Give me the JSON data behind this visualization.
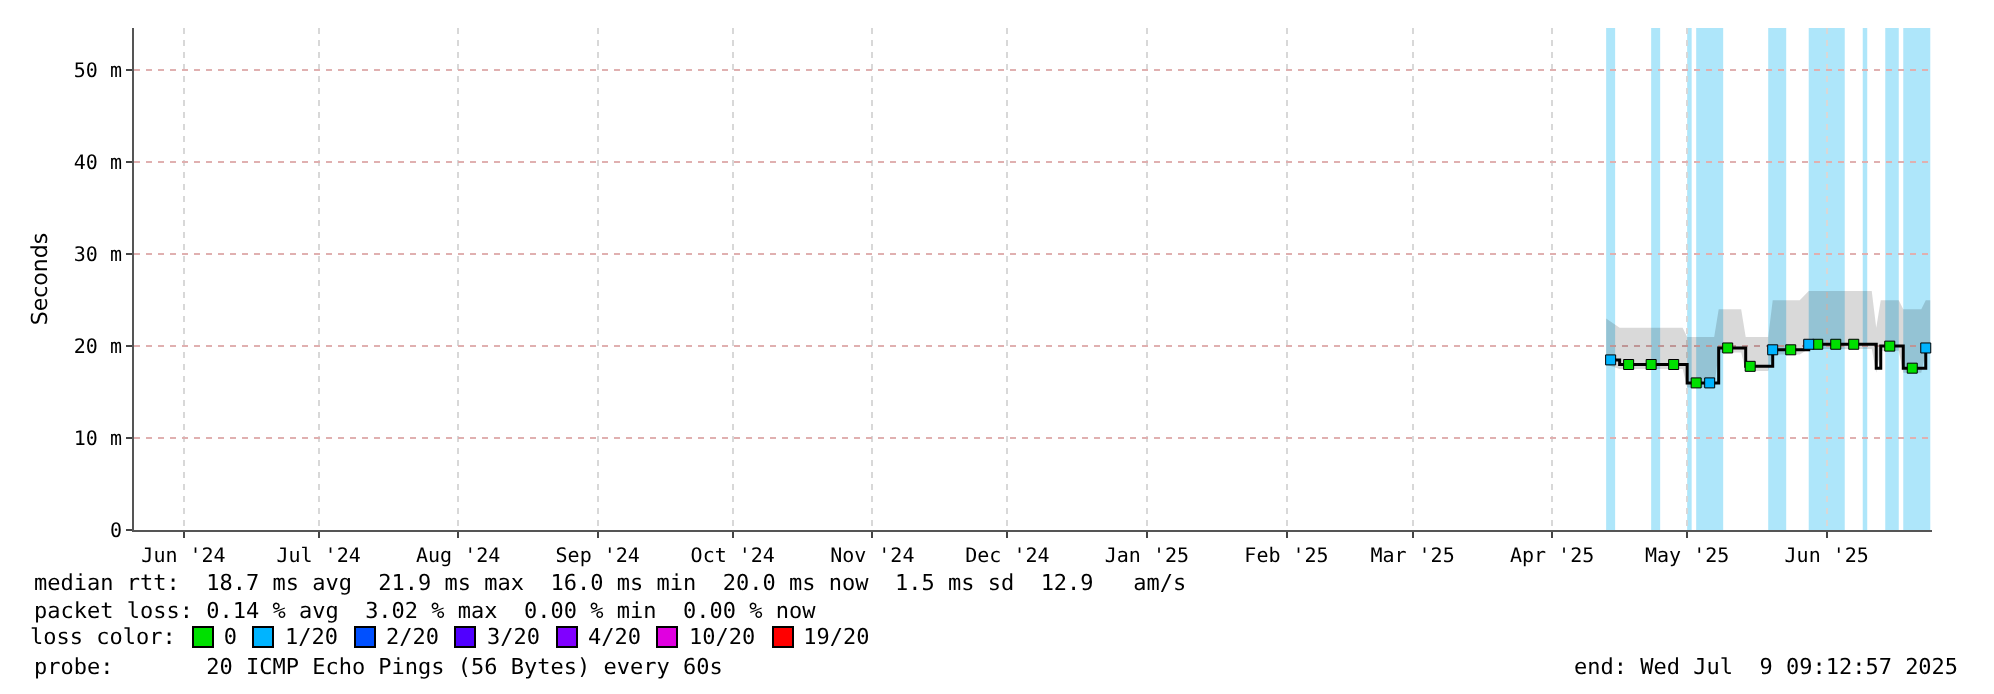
{
  "chart_data": {
    "type": "line",
    "ylabel": "Seconds",
    "xlim": [
      "2024-06-05",
      "2025-07-09T09:13"
    ],
    "xticks": [
      {
        "value": "2024-06-16",
        "label": "Jun '24"
      },
      {
        "value": "2024-07-16",
        "label": "Jul '24"
      },
      {
        "value": "2024-08-16",
        "label": "Aug '24"
      },
      {
        "value": "2024-09-16",
        "label": "Sep '24"
      },
      {
        "value": "2024-10-16",
        "label": "Oct '24"
      },
      {
        "value": "2024-11-16",
        "label": "Nov '24"
      },
      {
        "value": "2024-12-16",
        "label": "Dec '24"
      },
      {
        "value": "2025-01-16",
        "label": "Jan '25"
      },
      {
        "value": "2025-02-16",
        "label": "Feb '25"
      },
      {
        "value": "2025-03-16",
        "label": "Mar '25"
      },
      {
        "value": "2025-04-16",
        "label": "Apr '25"
      },
      {
        "value": "2025-05-16",
        "label": "May '25"
      },
      {
        "value": "2025-06-16",
        "label": "Jun '25"
      }
    ],
    "ylim": [
      0,
      54.6
    ],
    "yticks": [
      0,
      {
        "value": 10,
        "label": "10 m"
      },
      {
        "value": 20,
        "label": "20 m"
      },
      {
        "value": 30,
        "label": "30 m"
      },
      {
        "value": 40,
        "label": "40 m"
      },
      {
        "value": 50,
        "label": "50 m"
      }
    ],
    "grid": true,
    "legend": "bottom",
    "legend_title": "loss color:",
    "marker": "square",
    "series": [
      {
        "color": "#000000",
        "marker": "none",
        "x": [
          "2025-04-28",
          "2025-05-01",
          "2025-05-15",
          "2025-05-16",
          "2025-05-22",
          "2025-05-23",
          "2025-05-28",
          "2025-05-29",
          "2025-06-03",
          "2025-06-04",
          "2025-06-10",
          "2025-06-12",
          "2025-06-26",
          "2025-06-27",
          "2025-06-28",
          "2025-07-02",
          "2025-07-03",
          "2025-07-07",
          "2025-07-08",
          "2025-07-09"
        ],
        "values": [
          18.5,
          18,
          18,
          16,
          16,
          19.8,
          19.8,
          17.8,
          17.8,
          19.6,
          19.6,
          20.2,
          20.2,
          17.6,
          20,
          20,
          17.6,
          17.6,
          19.8,
          19.8
        ],
        "lower": [
          18,
          17.5,
          17.5,
          15.5,
          15.5,
          19.3,
          19.3,
          17.3,
          17.3,
          19.1,
          19.1,
          19.7,
          19.7,
          17.1,
          19.5,
          19.5,
          17.1,
          17.1,
          19.3,
          19.3
        ],
        "upper": [
          23,
          22,
          22,
          21,
          21,
          24,
          24,
          21,
          21,
          25,
          25,
          26,
          26,
          22,
          25,
          25,
          24,
          24,
          25,
          25
        ]
      },
      {
        "name": "0",
        "type": "scatter",
        "color": "#00e000",
        "x": [
          "2025-05-03",
          "2025-05-08",
          "2025-05-13",
          "2025-05-18",
          "2025-05-25",
          "2025-05-30",
          "2025-06-08",
          "2025-06-14",
          "2025-06-18",
          "2025-06-22",
          "2025-06-30",
          "2025-07-05"
        ],
        "values": [
          18,
          18,
          18,
          16,
          19.8,
          17.8,
          19.6,
          20.2,
          20.2,
          20.2,
          20,
          17.6
        ]
      },
      {
        "name": "1/20",
        "type": "scatter",
        "color": "#00b4ff",
        "x": [
          "2025-04-29",
          "2025-05-21",
          "2025-06-04",
          "2025-06-12",
          "2025-07-08"
        ],
        "values": [
          18.5,
          16,
          19.6,
          20.2,
          19.8
        ]
      },
      {
        "name": "2/20",
        "type": "scatter",
        "color": "#0050ff"
      },
      {
        "name": "3/20",
        "type": "scatter",
        "color": "#5000ff"
      },
      {
        "name": "4/20",
        "type": "scatter",
        "color": "#8000ff"
      },
      {
        "name": "10/20",
        "type": "scatter",
        "color": "#e000e0"
      },
      {
        "name": "19/20",
        "type": "scatter",
        "color": "#ff0000"
      }
    ],
    "bands": [
      {
        "axis": "x",
        "from": "2025-04-28",
        "to": "2025-04-30",
        "color": "#aee6fa"
      },
      {
        "axis": "x",
        "from": "2025-05-08",
        "to": "2025-05-10",
        "color": "#aee6fa"
      },
      {
        "axis": "x",
        "from": "2025-05-16",
        "to": "2025-05-17",
        "color": "#aee6fa"
      },
      {
        "axis": "x",
        "from": "2025-05-18",
        "to": "2025-05-24",
        "color": "#aee6fa"
      },
      {
        "axis": "x",
        "from": "2025-06-03",
        "to": "2025-06-07",
        "color": "#aee6fa"
      },
      {
        "axis": "x",
        "from": "2025-06-12",
        "to": "2025-06-20",
        "color": "#aee6fa"
      },
      {
        "axis": "x",
        "from": "2025-06-24",
        "to": "2025-06-25",
        "color": "#aee6fa"
      },
      {
        "axis": "x",
        "from": "2025-06-29",
        "to": "2025-07-02",
        "color": "#aee6fa"
      },
      {
        "axis": "x",
        "from": "2025-07-03",
        "to": "2025-07-09",
        "color": "#aee6fa"
      }
    ],
    "annotations": [
      "median rtt:  18.7 ms avg  21.9 ms max  16.0 ms min  20.0 ms now  1.5 ms sd  12.9   am/s",
      "packet loss: 0.14 % avg  3.02 % max  0.00 % min  0.00 % now",
      "probe:       20 ICMP Echo Pings (56 Bytes) every 60s",
      "end: Wed Jul  9 09:12:57 2025"
    ]
  }
}
